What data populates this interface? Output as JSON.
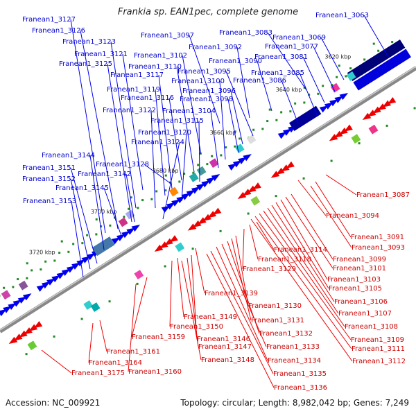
{
  "title": "Frankia sp. EAN1pec, complete genome",
  "footer": {
    "accession": "Accession: NC_009921",
    "summary": "Topology: circular; Length: 8,982,042 bp; Genes: 7,249"
  },
  "ticks": [
    "3620 kbp",
    "3640 kbp",
    "3660 kbp",
    "3680 kbp",
    "3700 kbp",
    "3720 kbp"
  ],
  "forward_labels": [
    "Franean1_3063",
    "Franean1_3069",
    "Franean1_3077",
    "Franean1_3081",
    "Franean1_3083",
    "Franean1_3085",
    "Franean1_3086",
    "Franean1_3090",
    "Franean1_3092",
    "Franean1_3095",
    "Franean1_3096",
    "Franean1_3097",
    "Franean1_3098",
    "Franean1_3100",
    "Franean1_3102",
    "Franean1_3104",
    "Franean1_3110",
    "Franean1_3115",
    "Franean1_3116",
    "Franean1_3117",
    "Franean1_3119",
    "Franean1_3120",
    "Franean1_3121",
    "Franean1_3122",
    "Franean1_3123",
    "Franean1_3124",
    "Franean1_3125",
    "Franean1_3126",
    "Franean1_3127",
    "Franean1_3128",
    "Franean1_3142",
    "Franean1_3144",
    "Franean1_3145",
    "Franean1_3151",
    "Franean1_3152",
    "Franean1_3153"
  ],
  "reverse_labels": [
    "Franean1_3087",
    "Franean1_3094",
    "Franean1_3091",
    "Franean1_3093",
    "Franean1_3099",
    "Franean1_3101",
    "Franean1_3103",
    "Franean1_3105",
    "Franean1_3106",
    "Franean1_3107",
    "Franean1_3108",
    "Franean1_3109",
    "Franean1_3111",
    "Franean1_3112",
    "Franean1_3114",
    "Franean1_3118",
    "Franean1_3129",
    "Franean1_3130",
    "Franean1_3131",
    "Franean1_3132",
    "Franean1_3133",
    "Franean1_3134",
    "Franean1_3135",
    "Franean1_3136",
    "Franean1_3139",
    "Franean1_3146",
    "Franean1_3147",
    "Franean1_3148",
    "Franean1_3149",
    "Franean1_3150",
    "Franean1_3159",
    "Franean1_3160",
    "Franean1_3161",
    "Franean1_3164",
    "Franean1_3175"
  ],
  "colors": {
    "forward": "#0000ee",
    "reverse": "#ee0000",
    "backbone": "#888888",
    "gc": "#228822"
  }
}
